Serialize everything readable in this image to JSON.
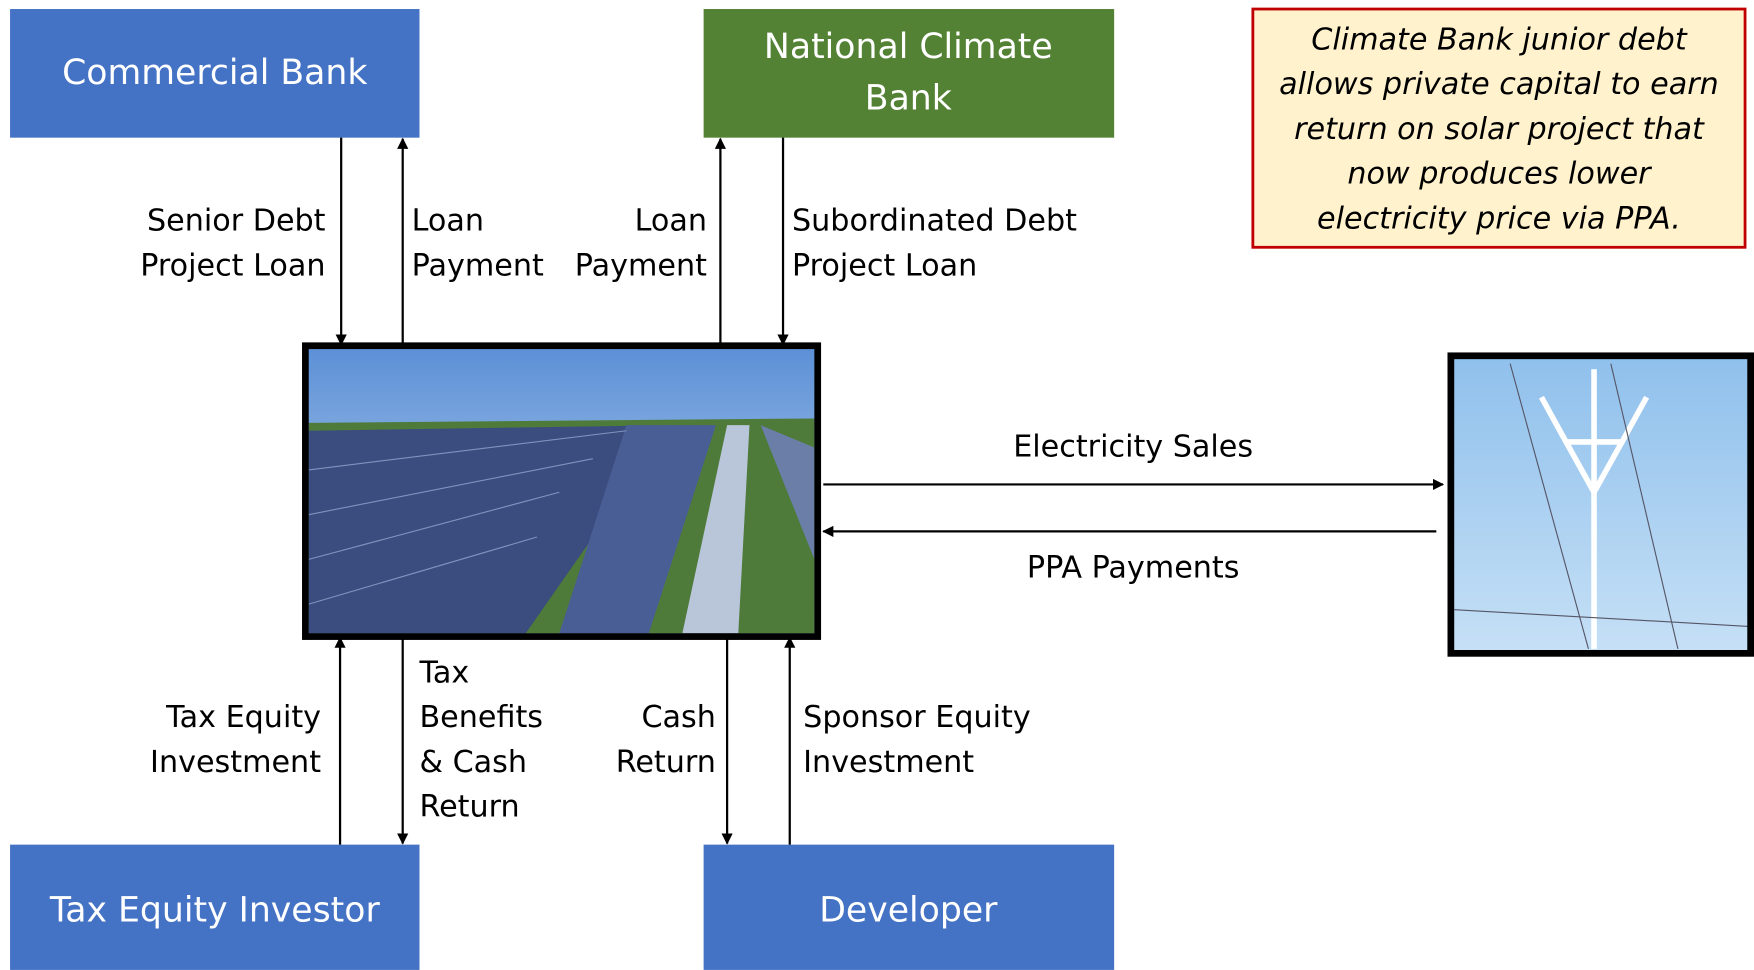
{
  "nodes": [
    {
      "label": [
        "Commercial Bank"
      ]
    },
    {
      "label": [
        "National Climate",
        "Bank"
      ]
    },
    {
      "label": [
        "Tax Equity Investor"
      ]
    },
    {
      "label": [
        "Developer"
      ]
    }
  ],
  "flows": [
    {
      "label": [
        "Senior Debt",
        "Project Loan"
      ]
    },
    {
      "label": [
        "Loan",
        "Payment"
      ]
    },
    {
      "label": [
        "Loan",
        "Payment"
      ]
    },
    {
      "label": [
        "Subordinated Debt",
        "Project Loan"
      ]
    },
    {
      "label": [
        "Tax Equity",
        "Investment"
      ]
    },
    {
      "label": [
        "Tax",
        "Benefits",
        "& Cash",
        "Return"
      ]
    },
    {
      "label": [
        "Cash",
        "Return"
      ]
    },
    {
      "label": [
        "Sponsor Equity",
        "Investment"
      ]
    },
    {
      "label": [
        "Electricity Sales"
      ]
    },
    {
      "label": [
        "PPA Payments"
      ]
    }
  ],
  "note": {
    "lines": [
      "Climate Bank junior debt",
      "allows private capital to earn",
      "return on solar project that",
      "now produces lower",
      "electricity price via PPA."
    ]
  }
}
